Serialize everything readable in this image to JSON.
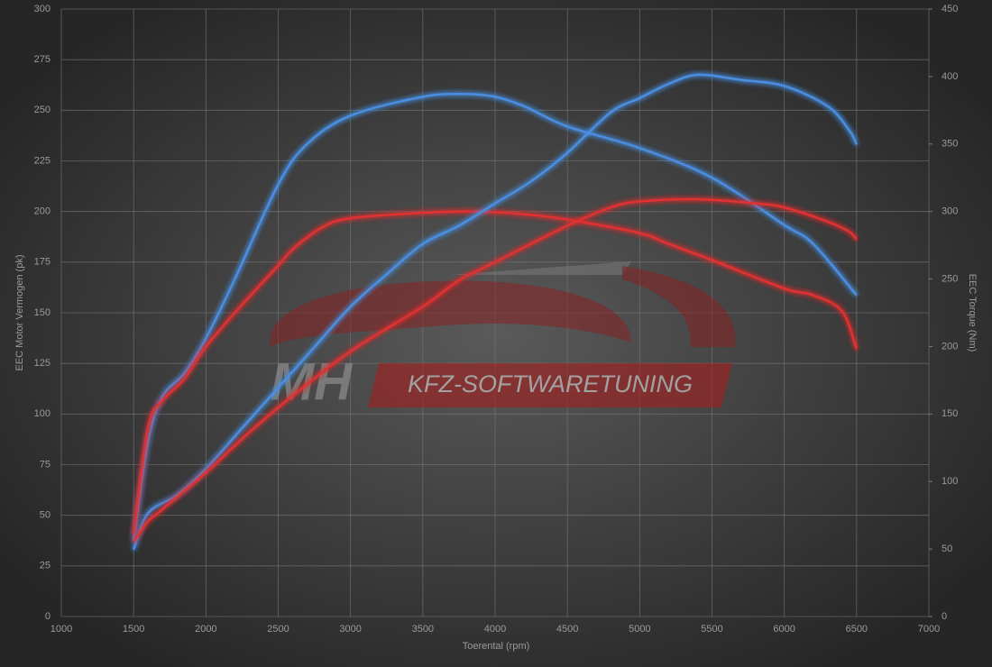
{
  "chart_data": {
    "type": "line",
    "xlabel": "Toerental (rpm)",
    "ylabel": "EEC Motor Vermogen (pk)",
    "y2label": "EEC Torque (Nm)",
    "annotations": [
      "MH",
      "KFZ-SOFTWARETUNING"
    ],
    "xlim": [
      1000,
      7000
    ],
    "xticks": [
      1000,
      1500,
      2000,
      2500,
      3000,
      3500,
      4000,
      4500,
      5000,
      5500,
      6000,
      6500,
      7000
    ],
    "ylim": [
      0,
      300
    ],
    "yticks": [
      0,
      25,
      50,
      75,
      100,
      125,
      150,
      175,
      200,
      225,
      250,
      275,
      300
    ],
    "y2lim": [
      0,
      450
    ],
    "y2ticks": [
      0,
      50,
      100,
      150,
      200,
      250,
      300,
      350,
      400,
      450
    ],
    "grid": true,
    "series": [
      {
        "color": "#4a8ee0",
        "axis": "y2",
        "x": [
          1500,
          1600,
          1700,
          1850,
          2000,
          2200,
          2500,
          2700,
          3000,
          3500,
          3800,
          4000,
          4200,
          4500,
          5000,
          5500,
          6000,
          6200,
          6500
        ],
        "values": [
          56,
          130,
          163,
          180,
          206,
          250,
          320,
          350,
          371,
          385,
          387,
          385,
          378,
          363,
          347,
          325,
          290,
          276,
          238
        ]
      },
      {
        "color": "#e03030",
        "axis": "y2",
        "x": [
          1500,
          1600,
          1700,
          1850,
          2000,
          2250,
          2500,
          2600,
          2800,
          3000,
          3500,
          3850,
          4200,
          4500,
          5000,
          5200,
          5500,
          6000,
          6200,
          6400,
          6500
        ],
        "values": [
          61,
          140,
          160,
          176,
          200,
          231,
          260,
          272,
          288,
          295,
          299,
          300,
          298,
          294,
          284,
          276,
          264,
          243,
          238,
          226,
          198
        ]
      },
      {
        "color": "#4a8ee0",
        "x": [
          1500,
          1600,
          1800,
          2000,
          2250,
          2500,
          2750,
          3000,
          3250,
          3500,
          3750,
          4000,
          4250,
          4500,
          4800,
          5000,
          5200,
          5400,
          5700,
          6000,
          6300,
          6450,
          6500
        ],
        "values": [
          33,
          51,
          60,
          73,
          93,
          113,
          133,
          153,
          169,
          184,
          193,
          204,
          215,
          229,
          249,
          256,
          263,
          267.5,
          265,
          262,
          252,
          240,
          233
        ]
      },
      {
        "color": "#e03030",
        "x": [
          1500,
          1600,
          1700,
          2000,
          2300,
          2600,
          3000,
          3500,
          3750,
          4000,
          4500,
          4800,
          5000,
          5400,
          5800,
          6000,
          6300,
          6450,
          6500
        ],
        "values": [
          37,
          47,
          53,
          71,
          91,
          109,
          131,
          153,
          166,
          175,
          193,
          202,
          205,
          206,
          204,
          202,
          195,
          190,
          186
        ]
      }
    ]
  }
}
